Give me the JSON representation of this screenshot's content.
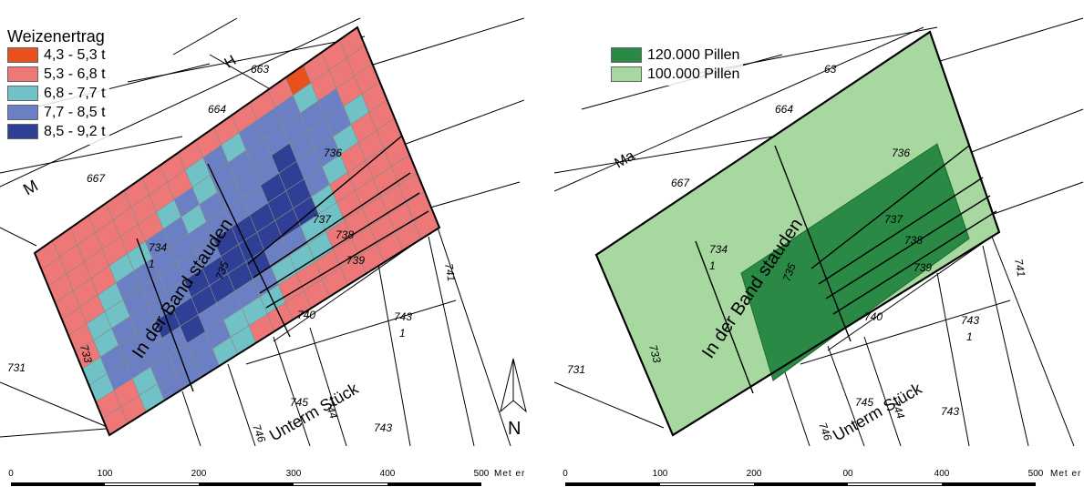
{
  "left_map": {
    "legend": {
      "title": "Weizenertrag",
      "items": [
        {
          "label": "4,3 - 5,3 t",
          "color": "#e8501e"
        },
        {
          "label": "5,3 - 6,8 t",
          "color": "#ee7878"
        },
        {
          "label": "6,8 - 7,7 t",
          "color": "#70c2c6"
        },
        {
          "label": "7,7 - 8,5 t",
          "color": "#6b7fc4"
        },
        {
          "label": "8,5 - 9,2 t",
          "color": "#2e3f95"
        }
      ]
    },
    "grid_values": [
      [
        1,
        1,
        1,
        1,
        1,
        1,
        1,
        1,
        1,
        1,
        1,
        1,
        1,
        1,
        0,
        1,
        1,
        1
      ],
      [
        1,
        1,
        1,
        1,
        1,
        1,
        1,
        1,
        2,
        3,
        2,
        3,
        3,
        3,
        2,
        1,
        1,
        1
      ],
      [
        1,
        1,
        1,
        1,
        1,
        1,
        2,
        3,
        2,
        3,
        3,
        3,
        3,
        3,
        3,
        3,
        1,
        1
      ],
      [
        1,
        1,
        1,
        2,
        2,
        3,
        3,
        2,
        3,
        3,
        3,
        3,
        4,
        3,
        3,
        3,
        2,
        1
      ],
      [
        1,
        1,
        2,
        3,
        3,
        3,
        3,
        3,
        3,
        3,
        3,
        4,
        4,
        3,
        3,
        2,
        1,
        1
      ],
      [
        1,
        2,
        2,
        3,
        3,
        3,
        3,
        3,
        4,
        4,
        4,
        4,
        4,
        3,
        2,
        1,
        1,
        1
      ],
      [
        1,
        2,
        3,
        3,
        3,
        3,
        4,
        4,
        4,
        4,
        4,
        4,
        4,
        2,
        1,
        1,
        1,
        1
      ],
      [
        2,
        3,
        3,
        3,
        4,
        4,
        4,
        4,
        4,
        4,
        3,
        3,
        2,
        2,
        1,
        1,
        1,
        1
      ],
      [
        2,
        3,
        3,
        3,
        3,
        4,
        3,
        3,
        3,
        3,
        2,
        2,
        2,
        1,
        1,
        1,
        1,
        1
      ],
      [
        1,
        1,
        2,
        3,
        3,
        3,
        3,
        2,
        2,
        2,
        1,
        1,
        1,
        1,
        1,
        1,
        1,
        1
      ],
      [
        1,
        1,
        2,
        3,
        3,
        3,
        2,
        2,
        1,
        1,
        1,
        1,
        1,
        1,
        1,
        1,
        1,
        1
      ]
    ],
    "parcels": [
      "663",
      "664",
      "667",
      "734",
      "1",
      "736",
      "737",
      "738",
      "739",
      "740",
      "735",
      "743",
      "1",
      "741",
      "744",
      "745",
      "743",
      "746",
      "733",
      "731"
    ],
    "street_names": [
      "In der Band stauden",
      "Unterm Stück",
      "M",
      "H"
    ],
    "scale": {
      "ticks": [
        "0",
        "100",
        "200",
        "300",
        "400",
        "500"
      ],
      "unit": "Met er"
    }
  },
  "right_map": {
    "legend": {
      "items": [
        {
          "label": "120.000 Pillen",
          "color": "#2a8a45"
        },
        {
          "label": "100.000 Pillen",
          "color": "#a6d8a0"
        }
      ]
    },
    "parcels": [
      "63",
      "664",
      "667",
      "734",
      "1",
      "736",
      "737",
      "738",
      "739",
      "740",
      "735",
      "743",
      "1",
      "741",
      "744",
      "745",
      "743",
      "746",
      "733",
      "731"
    ],
    "street_names": [
      "In der Band stauden",
      "Unterm Stück",
      "Ma"
    ],
    "scale": {
      "ticks": [
        "0",
        "100",
        "200",
        "00",
        "400",
        "500"
      ],
      "unit": "Met er"
    }
  },
  "north_arrow": {
    "letter": "N"
  }
}
